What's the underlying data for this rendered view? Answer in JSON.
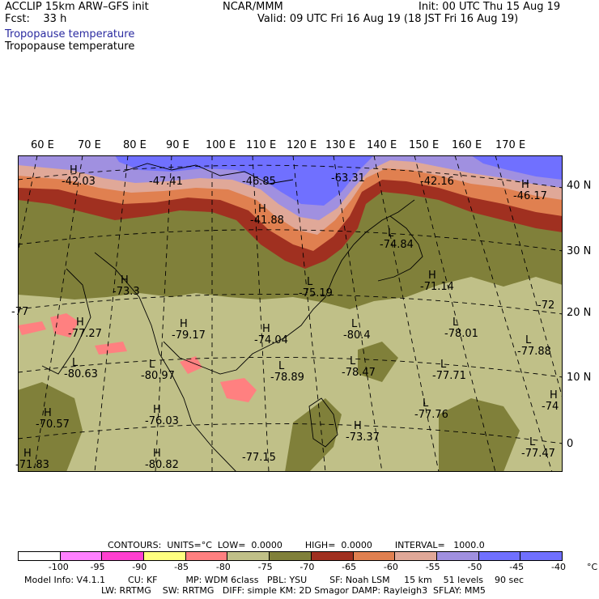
{
  "header": {
    "model": "ACCLIP 15km ARW–GFS init",
    "fcst": "Fcst:    33 h",
    "center": "NCAR/MMM",
    "init": "Init: 00 UTC Thu 15 Aug 19",
    "valid": "Valid: 09 UTC Fri 16 Aug 19 (18 JST Fri 16 Aug 19)",
    "field_1": "Tropopause temperature",
    "field_2": "Tropopause temperature"
  },
  "lon_labels": [
    "60 E",
    "70 E",
    "80 E",
    "90 E",
    "100 E",
    "110 E",
    "120 E",
    "130 E",
    "140 E",
    "150 E",
    "160 E",
    "170 E"
  ],
  "lat_labels": [
    "40 N",
    "30 N",
    "20 N",
    "10 N",
    "0"
  ],
  "extrema": [
    {
      "type": "H",
      "value": "-42.03"
    },
    {
      "type": "",
      "value": "-47.41"
    },
    {
      "type": "",
      "value": "-46.85"
    },
    {
      "type": "",
      "value": "-63.31"
    },
    {
      "type": "",
      "value": "-42.16"
    },
    {
      "type": "H",
      "value": "-46.17"
    },
    {
      "type": "H",
      "value": "-41.88"
    },
    {
      "type": "L",
      "value": "-74.84"
    },
    {
      "type": "H",
      "value": "-73.3"
    },
    {
      "type": "L",
      "value": "-75.19"
    },
    {
      "type": "H",
      "value": "-71.14"
    },
    {
      "type": "",
      "value": "-72"
    },
    {
      "type": "",
      "value": "-77"
    },
    {
      "type": "H",
      "value": "-77.27"
    },
    {
      "type": "H",
      "value": "-79.17"
    },
    {
      "type": "H",
      "value": "-74.04"
    },
    {
      "type": "L",
      "value": "-80.4"
    },
    {
      "type": "L",
      "value": "-78.01"
    },
    {
      "type": "L",
      "value": "-77.88"
    },
    {
      "type": "L",
      "value": "-80.63"
    },
    {
      "type": "L",
      "value": "-80.97"
    },
    {
      "type": "L",
      "value": "-78.89"
    },
    {
      "type": "L",
      "value": "-78.47"
    },
    {
      "type": "L",
      "value": "-77.71"
    },
    {
      "type": "H",
      "value": "-74"
    },
    {
      "type": "H",
      "value": "-70.57"
    },
    {
      "type": "H",
      "value": "-76.03"
    },
    {
      "type": "L",
      "value": "-77.76"
    },
    {
      "type": "H",
      "value": "-73.37"
    },
    {
      "type": "L",
      "value": "-77.47"
    },
    {
      "type": "H",
      "value": "-80.82"
    },
    {
      "type": "H",
      "value": "-71.83"
    },
    {
      "type": "",
      "value": "-77.15"
    }
  ],
  "contours_line": "CONTOURS:  UNITS=°C  LOW=  0.0000        HIGH=  0.0000        INTERVAL=   1000.0",
  "legend": {
    "colors": [
      "#ffffff",
      "#ff80ff",
      "#ff40d0",
      "#ffff80",
      "#ff8080",
      "#c0c088",
      "#80803a",
      "#a03020",
      "#e08050",
      "#e0a898",
      "#a090e0",
      "#7070ff",
      "#7070ff"
    ],
    "labels": [
      "-100",
      "-95",
      "-90",
      "-85",
      "-80",
      "-75",
      "-70",
      "-65",
      "-60",
      "-55",
      "-50",
      "-45",
      "-40",
      "°C"
    ]
  },
  "model_info_1": "Model Info: V4.1.1        CU: KF          MP: WDM 6class   PBL: YSU        SF: Noah LSM     15 km    51 levels    90 sec",
  "model_info_2": "LW: RRTMG    SW: RRTMG   DIFF: simple KM: 2D Smagor DAMP: Rayleigh3  SFLAY: MM5"
}
